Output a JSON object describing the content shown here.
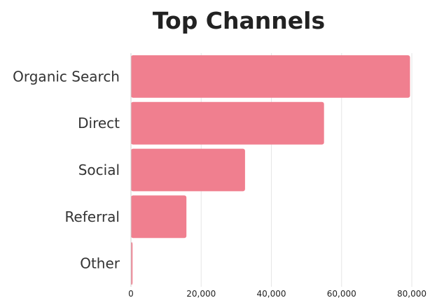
{
  "chart_data": {
    "type": "bar",
    "orientation": "horizontal",
    "title": "Top Channels",
    "categories": [
      "Organic Search",
      "Direct",
      "Social",
      "Referral",
      "Other"
    ],
    "values": [
      79500,
      55000,
      32500,
      15800,
      450
    ],
    "xlim": [
      0,
      80000
    ],
    "xticks": [
      0,
      20000,
      40000,
      60000,
      80000
    ],
    "xtick_labels": [
      "0",
      "20,000",
      "40,000",
      "60,000",
      "80,000"
    ],
    "xlabel": "",
    "ylabel": "",
    "grid": "vertical",
    "bar_color": "#f07f8f"
  }
}
